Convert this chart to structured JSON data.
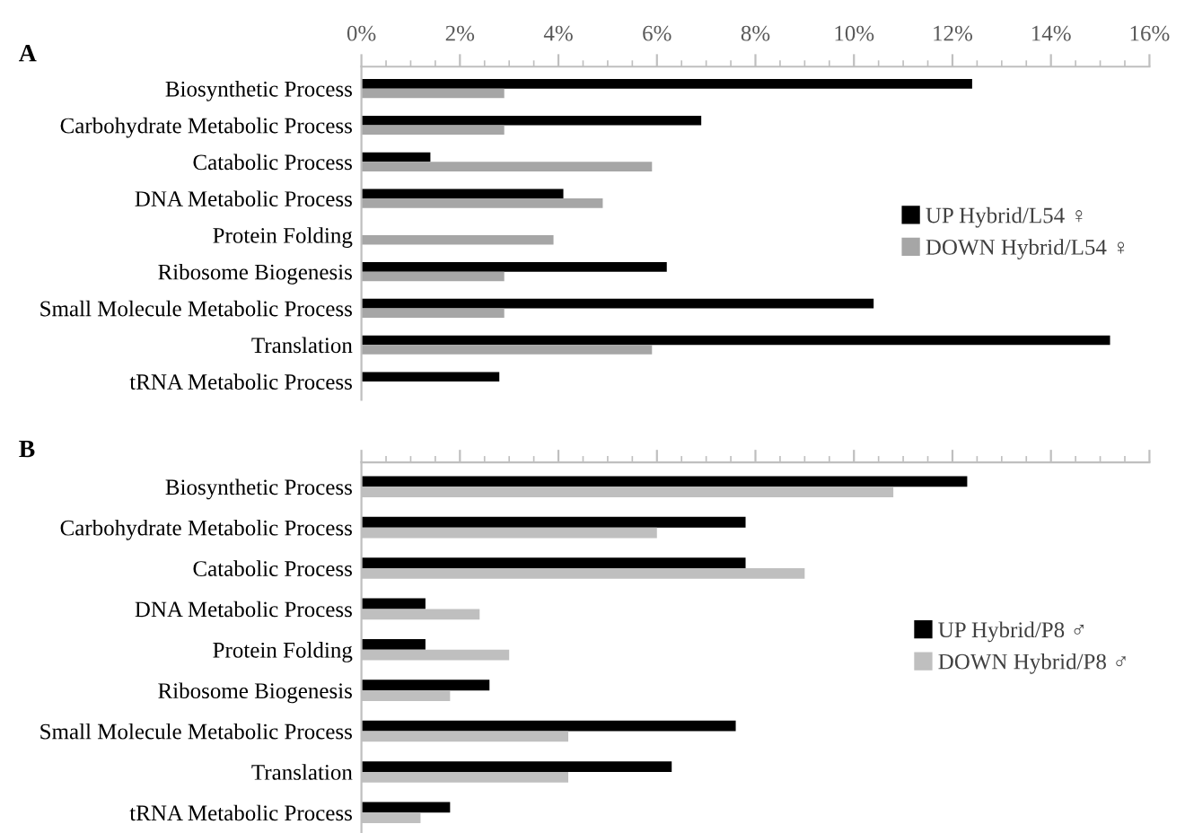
{
  "chart_data": [
    {
      "type": "bar",
      "orientation": "horizontal",
      "annotations": [
        "A"
      ],
      "categories": [
        "Biosynthetic Process",
        "Carbohydrate Metabolic Process",
        "Catabolic Process",
        "DNA Metabolic Process",
        "Protein Folding",
        "Ribosome Biogenesis",
        "Small Molecule Metabolic Process",
        "Translation",
        "tRNA Metabolic Process"
      ],
      "series": [
        {
          "name": "UP Hybrid/L54 ♀",
          "color": "#000000",
          "values": [
            12.4,
            6.9,
            1.4,
            4.1,
            null,
            6.2,
            10.4,
            15.2,
            2.8
          ]
        },
        {
          "name": "DOWN Hybrid/L54 ♀",
          "color": "#a6a6a6",
          "values": [
            2.9,
            2.9,
            5.9,
            4.9,
            3.9,
            2.9,
            2.9,
            5.9,
            null
          ]
        }
      ],
      "xlim": [
        0,
        16
      ],
      "xticks": [
        {
          "value": 0,
          "label": "0%"
        },
        {
          "value": 2,
          "label": "2%"
        },
        {
          "value": 4,
          "label": "4%"
        },
        {
          "value": 6,
          "label": "6%"
        },
        {
          "value": 8,
          "label": "8%"
        },
        {
          "value": 10,
          "label": "10%"
        },
        {
          "value": 12,
          "label": "12%"
        },
        {
          "value": 14,
          "label": "14%"
        },
        {
          "value": 16,
          "label": "16%"
        }
      ],
      "legend": "right",
      "grid": false
    },
    {
      "type": "bar",
      "orientation": "horizontal",
      "annotations": [
        "B"
      ],
      "categories": [
        "Biosynthetic Process",
        "Carbohydrate Metabolic Process",
        "Catabolic Process",
        "DNA Metabolic Process",
        "Protein Folding",
        "Ribosome Biogenesis",
        "Small Molecule Metabolic Process",
        "Translation",
        "tRNA Metabolic Process"
      ],
      "series": [
        {
          "name": "UP Hybrid/P8 ♂",
          "color": "#000000",
          "values": [
            12.3,
            7.8,
            7.8,
            1.3,
            1.3,
            2.6,
            7.6,
            6.3,
            1.8
          ]
        },
        {
          "name": "DOWN Hybrid/P8 ♂",
          "color": "#bfbfbf",
          "values": [
            10.8,
            6.0,
            9.0,
            2.4,
            3.0,
            1.8,
            4.2,
            4.2,
            1.2
          ]
        }
      ],
      "xlim": [
        0,
        16
      ],
      "xticks": [
        {
          "value": 0,
          "label": null
        },
        {
          "value": 2,
          "label": null
        },
        {
          "value": 4,
          "label": null
        },
        {
          "value": 6,
          "label": null
        },
        {
          "value": 8,
          "label": null
        },
        {
          "value": 10,
          "label": null
        },
        {
          "value": 12,
          "label": null
        },
        {
          "value": 14,
          "label": null
        },
        {
          "value": 16,
          "label": null
        }
      ],
      "tick_labels": "y",
      "legend": "right",
      "grid": false
    }
  ]
}
